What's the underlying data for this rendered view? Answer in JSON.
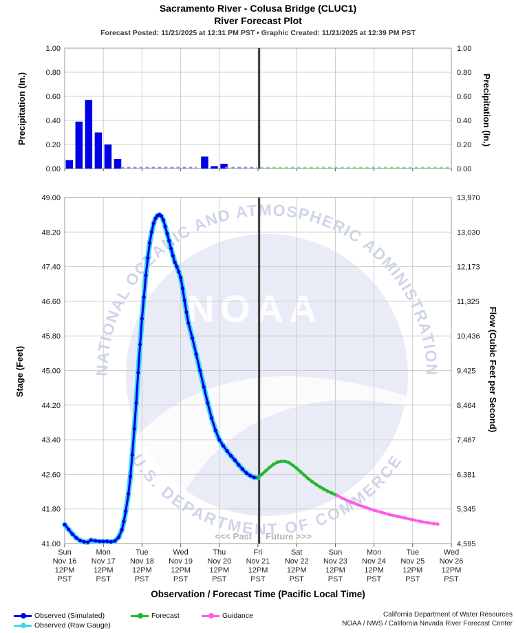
{
  "header": {
    "title_line1": "Sacramento River - Colusa Bridge (CLUC1)",
    "title_line2": "River Forecast Plot",
    "meta": "Forecast Posted: 11/21/2025 at 12:31 PM PST  •  Graphic Created: 11/21/2025 at 12:39 PM PST"
  },
  "colors": {
    "observed_simulated": "#0000e8",
    "observed_raw_gauge": "#3fd9f2",
    "forecast": "#22b82e",
    "guidance": "#ff5ce8",
    "now_line": "#3c3c3c",
    "gridline": "#cccccc",
    "plot_border": "#999999",
    "zero_dash_observed": "#8c8cf0",
    "zero_dash_forecast": "#8fd98f",
    "past_future_text": "#b4b4b4",
    "watermark_circle": "#e9ebf6",
    "watermark_text": "#cfd5e9"
  },
  "xaxis": {
    "title": "Observation / Forecast Time (Pacific Local Time)",
    "ticks": [
      {
        "day": "Sun",
        "date": "Nov 16",
        "time": "12PM",
        "tz": "PST"
      },
      {
        "day": "Mon",
        "date": "Nov 17",
        "time": "12PM",
        "tz": "PST"
      },
      {
        "day": "Tue",
        "date": "Nov 18",
        "time": "12PM",
        "tz": "PST"
      },
      {
        "day": "Wed",
        "date": "Nov 19",
        "time": "12PM",
        "tz": "PST"
      },
      {
        "day": "Thu",
        "date": "Nov 20",
        "time": "12PM",
        "tz": "PST"
      },
      {
        "day": "Fri",
        "date": "Nov 21",
        "time": "12PM",
        "tz": "PST"
      },
      {
        "day": "Sat",
        "date": "Nov 22",
        "time": "12PM",
        "tz": "PST"
      },
      {
        "day": "Sun",
        "date": "Nov 23",
        "time": "12PM",
        "tz": "PST"
      },
      {
        "day": "Mon",
        "date": "Nov 24",
        "time": "12PM",
        "tz": "PST"
      },
      {
        "day": "Tue",
        "date": "Nov 25",
        "time": "12PM",
        "tz": "PST"
      },
      {
        "day": "Wed",
        "date": "Nov 26",
        "time": "12PM",
        "tz": "PST"
      }
    ]
  },
  "annotations": {
    "past": "<<< Past",
    "future": "Future >>>"
  },
  "watermark": {
    "acronym": "NOAA",
    "arc_top": "NATIONAL OCEANIC AND ATMOSPHERIC ADMINISTRATION",
    "arc_bottom": "U.S. DEPARTMENT OF COMMERCE"
  },
  "legend": {
    "rows": [
      [
        {
          "label": "Observed (Simulated)",
          "color": "#0000e8"
        },
        {
          "label": "Forecast",
          "color": "#22b82e"
        },
        {
          "label": "Guidance",
          "color": "#ff5ce8"
        }
      ],
      [
        {
          "label": "Observed (Raw Gauge)",
          "color": "#3fd9f2"
        }
      ]
    ]
  },
  "footer": {
    "line1": "California Department of Water Resources",
    "line2": "NOAA / NWS / California Nevada River Forecast Center"
  },
  "chart_data": [
    {
      "type": "bar",
      "title": "Precipitation",
      "ylabel_left": "Precipitation (In.)",
      "ylabel_right": "Precipitation (In.)",
      "ylim": [
        0.0,
        1.0
      ],
      "yticks": [
        "0.00",
        "0.20",
        "0.40",
        "0.60",
        "0.80",
        "1.00"
      ],
      "x_unit": "days after Nov 16 12PM PST, 6-hour bars",
      "bars": [
        [
          0.0,
          0.07
        ],
        [
          0.25,
          0.39
        ],
        [
          0.5,
          0.57
        ],
        [
          0.75,
          0.3
        ],
        [
          1.0,
          0.2
        ],
        [
          1.25,
          0.08
        ],
        [
          3.5,
          0.1
        ],
        [
          3.75,
          0.02
        ],
        [
          4.0,
          0.04
        ]
      ],
      "zero_dash_observed_ranges": [
        [
          1.45,
          3.42
        ],
        [
          4.15,
          4.97
        ]
      ],
      "zero_dash_forecast_range": [
        5.05,
        10.0
      ],
      "grid": true
    },
    {
      "type": "line",
      "ylabel_left": "Stage (Feet)",
      "ylabel_right": "Flow (Cubic Feet per Second)",
      "ylim": [
        41.0,
        49.0
      ],
      "stage_ticks": [
        "41.00",
        "41.80",
        "42.60",
        "43.40",
        "44.20",
        "45.00",
        "45.80",
        "46.60",
        "47.40",
        "48.20",
        "49.00"
      ],
      "flow_ticks": [
        "4,595",
        "5,345",
        "6,381",
        "7,487",
        "8,464",
        "9,425",
        "10,436",
        "11,325",
        "12,173",
        "13,030",
        "13,970"
      ],
      "now_line_t": 5.03,
      "x_unit": "days after Nov 16 12PM PST",
      "grid": true,
      "series": [
        {
          "name": "Observed (Raw Gauge)",
          "color": "#3fd9f2",
          "points": [
            [
              0.0,
              41.44
            ],
            [
              0.1,
              41.33
            ],
            [
              0.2,
              41.22
            ],
            [
              0.3,
              41.13
            ],
            [
              0.4,
              41.07
            ],
            [
              0.5,
              41.04
            ],
            [
              0.6,
              41.03
            ],
            [
              0.68,
              41.08
            ],
            [
              0.8,
              41.06
            ],
            [
              0.9,
              41.05
            ],
            [
              1.0,
              41.05
            ],
            [
              1.1,
              41.05
            ],
            [
              1.2,
              41.04
            ],
            [
              1.3,
              41.06
            ],
            [
              1.4,
              41.15
            ],
            [
              1.48,
              41.32
            ],
            [
              1.53,
              41.51
            ],
            [
              1.58,
              41.75
            ],
            [
              1.65,
              42.15
            ],
            [
              1.7,
              42.55
            ],
            [
              1.75,
              43.05
            ],
            [
              1.8,
              43.65
            ],
            [
              1.85,
              44.25
            ],
            [
              1.9,
              44.95
            ],
            [
              1.95,
              45.6
            ],
            [
              2.0,
              46.2
            ],
            [
              2.05,
              46.7
            ],
            [
              2.1,
              47.2
            ],
            [
              2.15,
              47.6
            ],
            [
              2.2,
              47.95
            ],
            [
              2.25,
              48.2
            ],
            [
              2.3,
              48.4
            ],
            [
              2.35,
              48.52
            ],
            [
              2.4,
              48.58
            ],
            [
              2.45,
              48.6
            ],
            [
              2.5,
              48.57
            ],
            [
              2.55,
              48.48
            ],
            [
              2.6,
              48.33
            ],
            [
              2.65,
              48.17
            ],
            [
              2.7,
              48.0
            ],
            [
              2.75,
              47.82
            ],
            [
              2.8,
              47.65
            ],
            [
              2.85,
              47.5
            ],
            [
              2.9,
              47.4
            ],
            [
              2.95,
              47.28
            ],
            [
              3.0,
              47.15
            ],
            [
              3.05,
              46.9
            ],
            [
              3.1,
              46.62
            ],
            [
              3.15,
              46.35
            ],
            [
              3.2,
              46.1
            ],
            [
              3.3,
              45.75
            ],
            [
              3.4,
              45.38
            ],
            [
              3.5,
              45.0
            ],
            [
              3.6,
              44.62
            ],
            [
              3.7,
              44.25
            ],
            [
              3.8,
              43.9
            ],
            [
              3.9,
              43.62
            ],
            [
              4.0,
              43.4
            ],
            [
              4.1,
              43.26
            ],
            [
              4.2,
              43.14
            ],
            [
              4.3,
              43.03
            ],
            [
              4.4,
              42.93
            ],
            [
              4.5,
              42.82
            ],
            [
              4.6,
              42.72
            ],
            [
              4.7,
              42.63
            ],
            [
              4.8,
              42.57
            ],
            [
              4.9,
              42.53
            ],
            [
              5.0,
              42.52
            ]
          ]
        },
        {
          "name": "Observed (Simulated)",
          "color": "#0000e8",
          "points": [
            [
              0.0,
              41.44
            ],
            [
              0.1,
              41.33
            ],
            [
              0.2,
              41.22
            ],
            [
              0.3,
              41.13
            ],
            [
              0.4,
              41.07
            ],
            [
              0.5,
              41.04
            ],
            [
              0.6,
              41.03
            ],
            [
              0.68,
              41.08
            ],
            [
              0.8,
              41.06
            ],
            [
              0.9,
              41.05
            ],
            [
              1.0,
              41.05
            ],
            [
              1.1,
              41.05
            ],
            [
              1.2,
              41.04
            ],
            [
              1.3,
              41.06
            ],
            [
              1.4,
              41.15
            ],
            [
              1.48,
              41.32
            ],
            [
              1.53,
              41.51
            ],
            [
              1.58,
              41.75
            ],
            [
              1.65,
              42.15
            ],
            [
              1.7,
              42.55
            ],
            [
              1.75,
              43.05
            ],
            [
              1.8,
              43.65
            ],
            [
              1.85,
              44.25
            ],
            [
              1.9,
              44.95
            ],
            [
              1.95,
              45.6
            ],
            [
              2.0,
              46.2
            ],
            [
              2.05,
              46.7
            ],
            [
              2.1,
              47.2
            ],
            [
              2.15,
              47.6
            ],
            [
              2.2,
              47.95
            ],
            [
              2.25,
              48.2
            ],
            [
              2.3,
              48.4
            ],
            [
              2.35,
              48.52
            ],
            [
              2.4,
              48.58
            ],
            [
              2.45,
              48.6
            ],
            [
              2.5,
              48.57
            ],
            [
              2.55,
              48.48
            ],
            [
              2.6,
              48.33
            ],
            [
              2.65,
              48.17
            ],
            [
              2.7,
              48.0
            ],
            [
              2.75,
              47.82
            ],
            [
              2.8,
              47.65
            ],
            [
              2.85,
              47.5
            ],
            [
              2.9,
              47.4
            ],
            [
              2.95,
              47.28
            ],
            [
              3.0,
              47.15
            ],
            [
              3.05,
              46.9
            ],
            [
              3.1,
              46.62
            ],
            [
              3.15,
              46.35
            ],
            [
              3.2,
              46.1
            ],
            [
              3.3,
              45.75
            ],
            [
              3.4,
              45.38
            ],
            [
              3.5,
              45.0
            ],
            [
              3.6,
              44.62
            ],
            [
              3.7,
              44.25
            ],
            [
              3.8,
              43.9
            ],
            [
              3.9,
              43.62
            ],
            [
              4.0,
              43.4
            ],
            [
              4.1,
              43.26
            ],
            [
              4.2,
              43.14
            ],
            [
              4.3,
              43.03
            ],
            [
              4.4,
              42.93
            ],
            [
              4.5,
              42.82
            ],
            [
              4.6,
              42.72
            ],
            [
              4.7,
              42.63
            ],
            [
              4.8,
              42.57
            ],
            [
              4.9,
              42.53
            ],
            [
              5.0,
              42.52
            ]
          ]
        },
        {
          "name": "Forecast",
          "color": "#22b82e",
          "points": [
            [
              5.0,
              42.52
            ],
            [
              5.1,
              42.6
            ],
            [
              5.2,
              42.68
            ],
            [
              5.3,
              42.76
            ],
            [
              5.4,
              42.83
            ],
            [
              5.5,
              42.88
            ],
            [
              5.6,
              42.9
            ],
            [
              5.7,
              42.9
            ],
            [
              5.8,
              42.87
            ],
            [
              5.9,
              42.81
            ],
            [
              6.0,
              42.74
            ],
            [
              6.1,
              42.66
            ],
            [
              6.2,
              42.58
            ],
            [
              6.3,
              42.5
            ],
            [
              6.4,
              42.43
            ],
            [
              6.5,
              42.37
            ],
            [
              6.6,
              42.31
            ],
            [
              6.7,
              42.26
            ],
            [
              6.8,
              42.21
            ],
            [
              6.9,
              42.17
            ],
            [
              7.0,
              42.13
            ],
            [
              7.05,
              42.11
            ]
          ]
        },
        {
          "name": "Guidance",
          "color": "#ff5ce8",
          "points": [
            [
              7.05,
              42.11
            ],
            [
              7.2,
              42.04
            ],
            [
              7.4,
              41.96
            ],
            [
              7.6,
              41.89
            ],
            [
              7.8,
              41.83
            ],
            [
              8.0,
              41.77
            ],
            [
              8.2,
              41.72
            ],
            [
              8.4,
              41.67
            ],
            [
              8.6,
              41.63
            ],
            [
              8.8,
              41.59
            ],
            [
              9.0,
              41.55
            ],
            [
              9.2,
              41.51
            ],
            [
              9.4,
              41.48
            ],
            [
              9.55,
              41.46
            ],
            [
              9.65,
              41.45
            ]
          ]
        }
      ]
    }
  ]
}
